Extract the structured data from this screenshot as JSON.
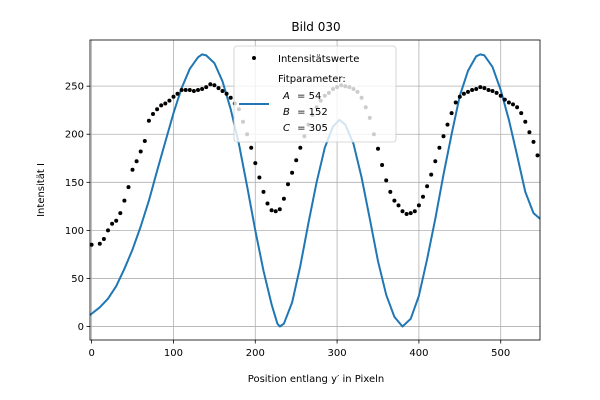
{
  "chart_data": {
    "type": "scatter",
    "title": "Bild 030",
    "xlabel": "Position entlang y′ in Pixeln",
    "ylabel": "Intensität I",
    "xlim": [
      -2,
      548
    ],
    "ylim": [
      -14,
      298
    ],
    "xticks": [
      0,
      100,
      200,
      300,
      400,
      500
    ],
    "yticks": [
      0,
      50,
      100,
      150,
      200,
      250
    ],
    "grid": true,
    "legend_position": "top-center",
    "legend": {
      "points_label": "Intensitätswerte",
      "fit_title": "Fitparameter:",
      "fit_lines": [
        {
          "sym": "A",
          "value": "= 54"
        },
        {
          "sym": "B",
          "value": "= 152"
        },
        {
          "sym": "C",
          "value": "= 305"
        }
      ]
    },
    "colors": {
      "points": "#000000",
      "fit": "#1f77b4",
      "grid": "#b0b0b0"
    },
    "series": [
      {
        "name": "Intensitätswerte",
        "kind": "points",
        "points": [
          [
            0,
            85
          ],
          [
            10,
            86
          ],
          [
            15,
            91
          ],
          [
            20,
            100
          ],
          [
            25,
            107
          ],
          [
            30,
            110
          ],
          [
            35,
            118
          ],
          [
            40,
            131
          ],
          [
            45,
            145
          ],
          [
            50,
            163
          ],
          [
            55,
            172
          ],
          [
            60,
            182
          ],
          [
            65,
            193
          ],
          [
            70,
            214
          ],
          [
            75,
            221
          ],
          [
            80,
            226
          ],
          [
            85,
            230
          ],
          [
            90,
            232
          ],
          [
            95,
            235
          ],
          [
            100,
            239
          ],
          [
            105,
            242
          ],
          [
            110,
            246
          ],
          [
            115,
            246
          ],
          [
            120,
            246
          ],
          [
            125,
            245
          ],
          [
            130,
            246
          ],
          [
            135,
            247
          ],
          [
            140,
            249
          ],
          [
            145,
            252
          ],
          [
            150,
            251
          ],
          [
            155,
            248
          ],
          [
            160,
            245
          ],
          [
            165,
            242
          ],
          [
            170,
            238
          ],
          [
            175,
            232
          ],
          [
            180,
            226
          ],
          [
            185,
            213
          ],
          [
            190,
            200
          ],
          [
            195,
            186
          ],
          [
            200,
            170
          ],
          [
            205,
            155
          ],
          [
            210,
            140
          ],
          [
            215,
            128
          ],
          [
            220,
            121
          ],
          [
            225,
            120
          ],
          [
            230,
            122
          ],
          [
            235,
            133
          ],
          [
            240,
            148
          ],
          [
            245,
            160
          ],
          [
            250,
            173
          ],
          [
            255,
            186
          ],
          [
            260,
            198
          ],
          [
            265,
            210
          ],
          [
            270,
            220
          ],
          [
            275,
            228
          ],
          [
            280,
            235
          ],
          [
            285,
            240
          ],
          [
            290,
            243
          ],
          [
            295,
            247
          ],
          [
            300,
            249
          ],
          [
            305,
            251
          ],
          [
            310,
            250
          ],
          [
            315,
            249
          ],
          [
            320,
            247
          ],
          [
            325,
            244
          ],
          [
            330,
            238
          ],
          [
            335,
            228
          ],
          [
            340,
            217
          ],
          [
            345,
            200
          ],
          [
            350,
            185
          ],
          [
            355,
            168
          ],
          [
            360,
            152
          ],
          [
            365,
            140
          ],
          [
            370,
            131
          ],
          [
            375,
            126
          ],
          [
            380,
            120
          ],
          [
            385,
            117
          ],
          [
            390,
            118
          ],
          [
            395,
            120
          ],
          [
            400,
            126
          ],
          [
            405,
            135
          ],
          [
            410,
            146
          ],
          [
            415,
            158
          ],
          [
            420,
            172
          ],
          [
            425,
            186
          ],
          [
            430,
            198
          ],
          [
            435,
            210
          ],
          [
            440,
            222
          ],
          [
            445,
            233
          ],
          [
            450,
            239
          ],
          [
            455,
            242
          ],
          [
            460,
            244
          ],
          [
            465,
            246
          ],
          [
            470,
            247
          ],
          [
            475,
            249
          ],
          [
            480,
            248
          ],
          [
            485,
            246
          ],
          [
            490,
            245
          ],
          [
            495,
            243
          ],
          [
            500,
            240
          ],
          [
            505,
            236
          ],
          [
            510,
            233
          ],
          [
            515,
            231
          ],
          [
            520,
            228
          ],
          [
            525,
            222
          ],
          [
            530,
            213
          ],
          [
            535,
            202
          ],
          [
            540,
            192
          ],
          [
            545,
            178
          ]
        ]
      },
      {
        "name": "",
        "kind": "fit-line",
        "points": [
          [
            -2,
            12
          ],
          [
            10,
            20
          ],
          [
            20,
            29
          ],
          [
            30,
            42
          ],
          [
            40,
            60
          ],
          [
            50,
            80
          ],
          [
            60,
            104
          ],
          [
            70,
            131
          ],
          [
            80,
            162
          ],
          [
            90,
            192
          ],
          [
            100,
            222
          ],
          [
            110,
            248
          ],
          [
            120,
            268
          ],
          [
            130,
            280
          ],
          [
            135,
            283
          ],
          [
            140,
            282
          ],
          [
            150,
            274
          ],
          [
            160,
            255
          ],
          [
            170,
            226
          ],
          [
            180,
            190
          ],
          [
            190,
            146
          ],
          [
            200,
            100
          ],
          [
            210,
            58
          ],
          [
            220,
            23
          ],
          [
            227,
            3
          ],
          [
            230,
            0
          ],
          [
            235,
            3
          ],
          [
            245,
            25
          ],
          [
            255,
            63
          ],
          [
            265,
            108
          ],
          [
            275,
            150
          ],
          [
            285,
            186
          ],
          [
            295,
            208
          ],
          [
            303,
            215
          ],
          [
            310,
            210
          ],
          [
            320,
            190
          ],
          [
            330,
            155
          ],
          [
            340,
            112
          ],
          [
            350,
            68
          ],
          [
            360,
            33
          ],
          [
            370,
            10
          ],
          [
            380,
            0
          ],
          [
            390,
            8
          ],
          [
            400,
            32
          ],
          [
            410,
            70
          ],
          [
            420,
            112
          ],
          [
            430,
            158
          ],
          [
            440,
            200
          ],
          [
            450,
            240
          ],
          [
            460,
            266
          ],
          [
            470,
            281
          ],
          [
            475,
            283
          ],
          [
            480,
            282
          ],
          [
            490,
            270
          ],
          [
            500,
            246
          ],
          [
            510,
            215
          ],
          [
            520,
            178
          ],
          [
            530,
            140
          ],
          [
            540,
            118
          ],
          [
            548,
            112
          ]
        ]
      }
    ]
  }
}
